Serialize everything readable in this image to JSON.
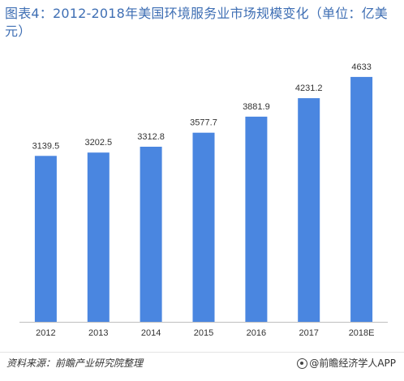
{
  "title": "图表4：2012-2018年美国环境服务业市场规模变化（单位：亿美元）",
  "chart_data": {
    "type": "bar",
    "categories": [
      "2012",
      "2013",
      "2014",
      "2015",
      "2016",
      "2017",
      "2018E"
    ],
    "values": [
      3139.5,
      3202.5,
      3312.8,
      3577.7,
      3881.9,
      4231.2,
      4633
    ],
    "value_labels": [
      "3139.5",
      "3202.5",
      "3312.8",
      "3577.7",
      "3881.9",
      "4231.2",
      "4633"
    ],
    "ylim": [
      0,
      4800
    ],
    "grid": false,
    "bar_color": "#4a86e0"
  },
  "footer": {
    "source": "资料来源：前瞻产业研究院整理",
    "brand": "@前瞻经济学人APP"
  },
  "colors": {
    "title": "#3f6fb4",
    "axis": "#bfbfbf",
    "text": "#333333"
  }
}
